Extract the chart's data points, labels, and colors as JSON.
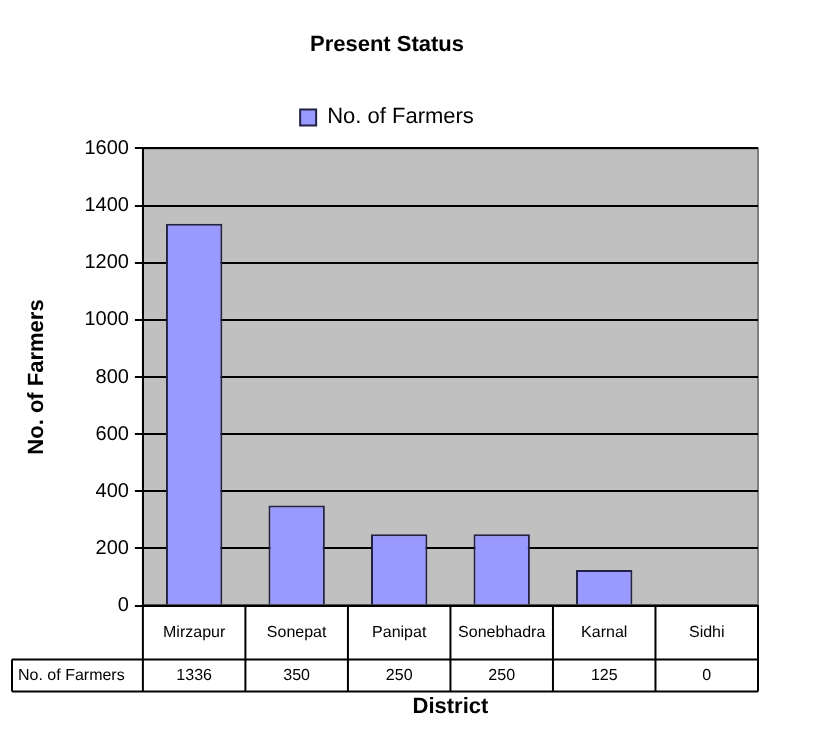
{
  "chart_data": {
    "type": "bar",
    "title": "Present Status",
    "xlabel": "District",
    "ylabel": "No. of Farmers",
    "categories": [
      "Mirzapur",
      "Sonepat",
      "Panipat",
      "Sonebhadra",
      "Karnal",
      "Sidhi"
    ],
    "series": [
      {
        "name": "No. of Farmers",
        "color": "#9999ff",
        "values": [
          1336,
          350,
          250,
          250,
          125,
          0
        ]
      }
    ],
    "ylim": [
      0,
      1600
    ],
    "yticks": [
      0,
      200,
      400,
      600,
      800,
      1000,
      1200,
      1400,
      1600
    ],
    "grid": "y",
    "legend": "top",
    "data_labels": true
  }
}
